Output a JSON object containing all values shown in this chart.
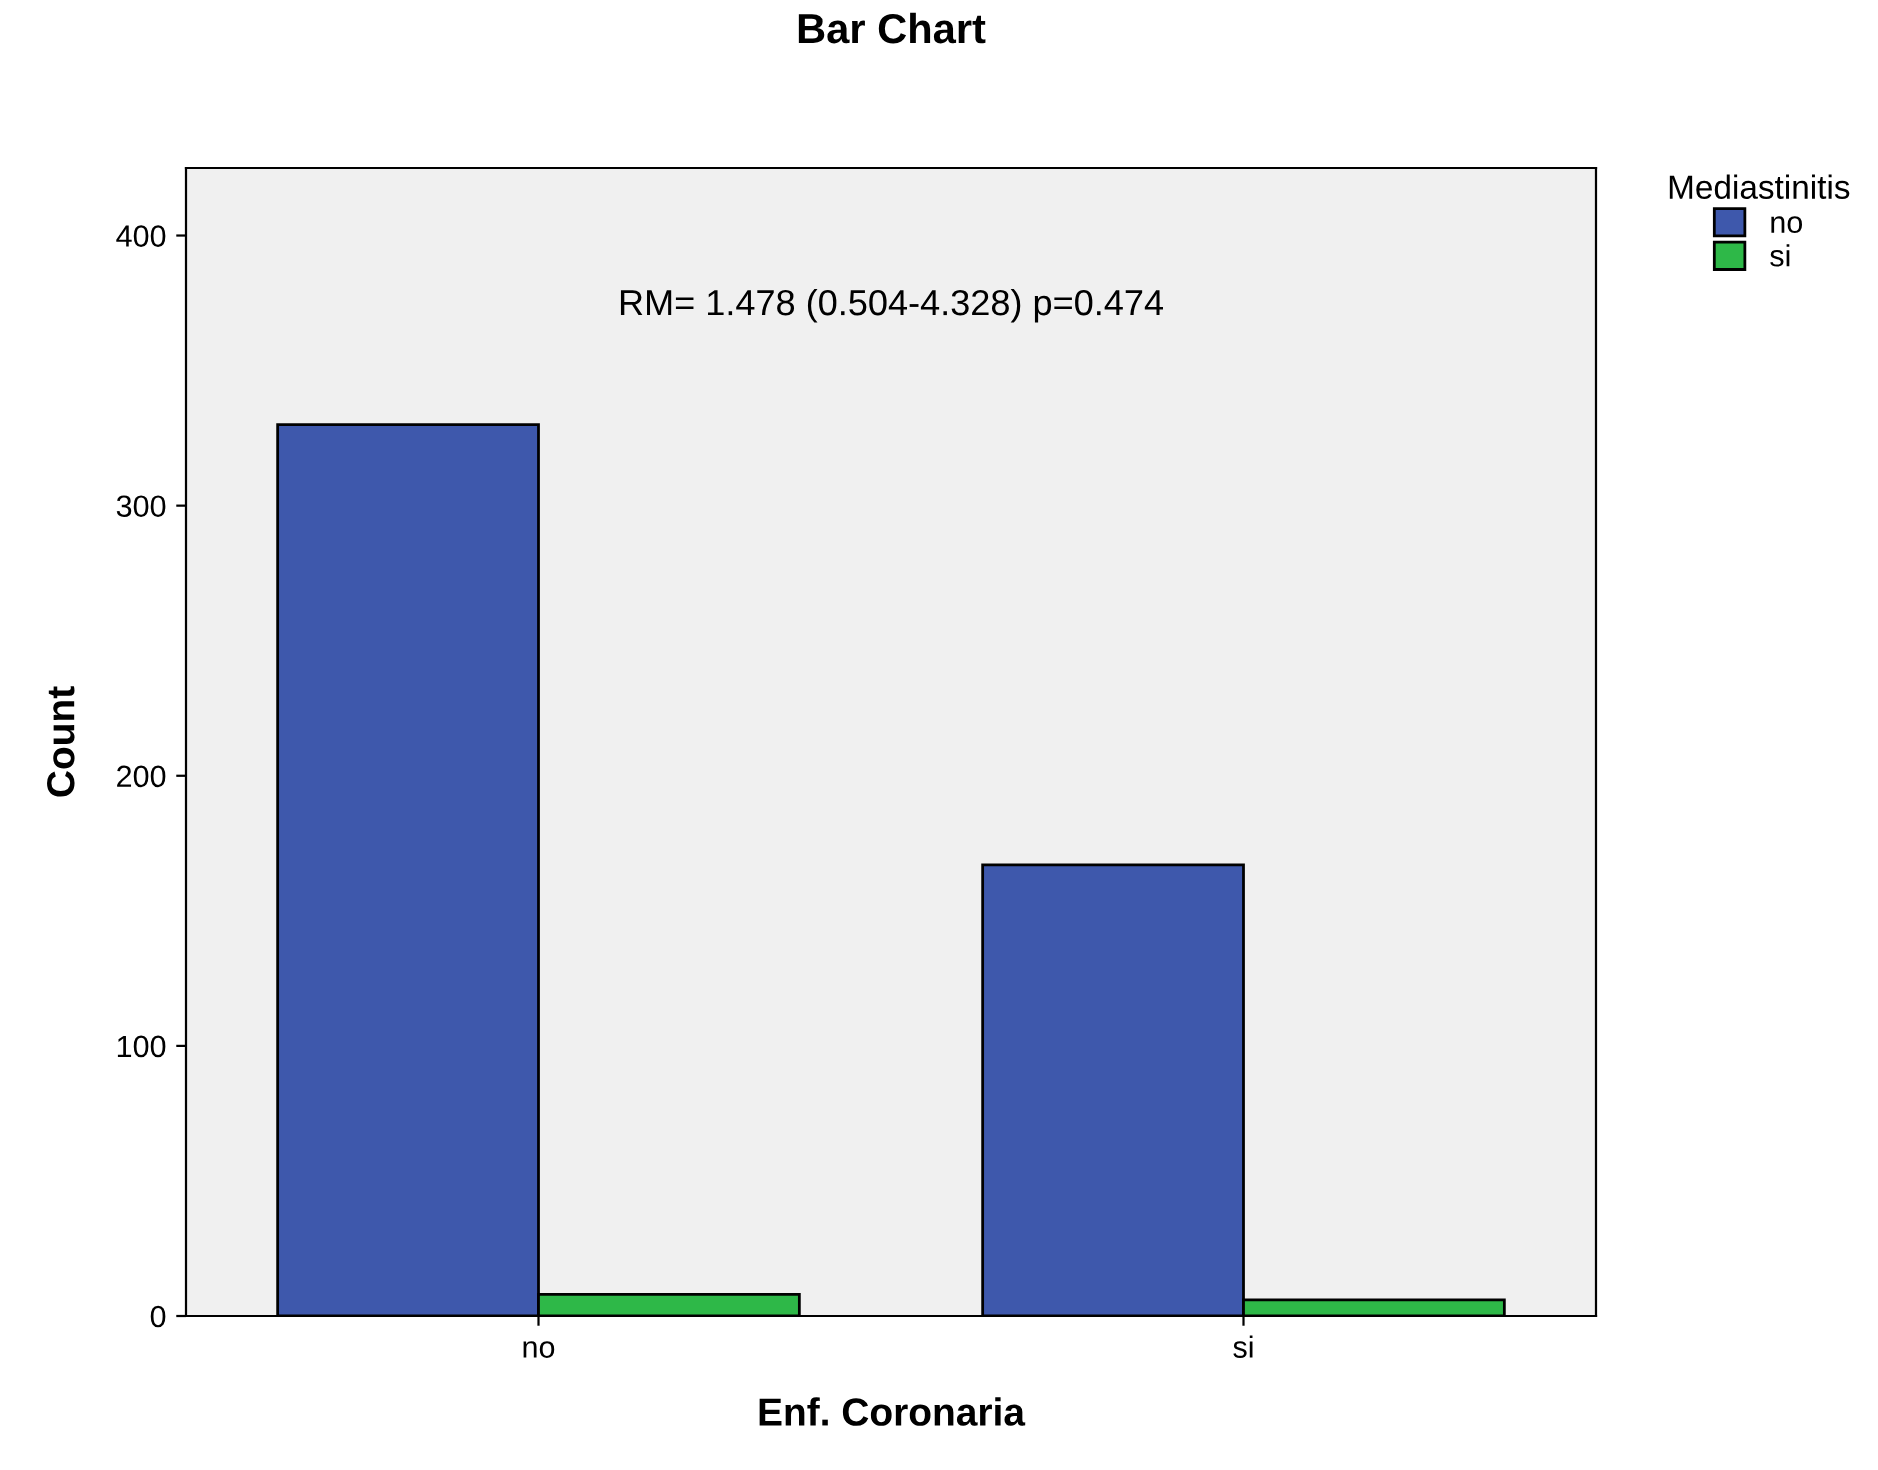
{
  "chart_data": {
    "type": "bar",
    "title": "Bar Chart",
    "xlabel": "Enf. Coronaria",
    "ylabel": "Count",
    "legend_title": "Mediastinitis",
    "categories": [
      "no",
      "si"
    ],
    "series": [
      {
        "name": "no",
        "color": "#3e58ac",
        "values": [
          330,
          167
        ]
      },
      {
        "name": "si",
        "color": "#2eb848",
        "values": [
          8,
          6
        ]
      }
    ],
    "ylim": [
      0,
      425
    ],
    "yticks": [
      0,
      100,
      200,
      300,
      400
    ],
    "grid": false,
    "legend": "top right",
    "annotations": [
      "RM= 1.478 (0.504-4.328) p=0.474"
    ]
  }
}
